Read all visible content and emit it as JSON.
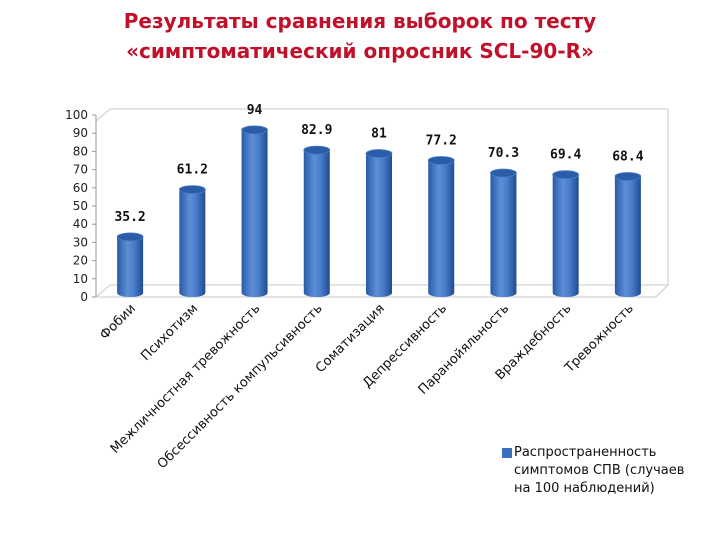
{
  "title_line1": "Результаты сравнения выборок по тесту",
  "title_line2": "«симптоматический опросник SCL-90-R»",
  "colors": {
    "title": "#c0102a",
    "bar": "#3b6fc0"
  },
  "chart_data": {
    "type": "bar",
    "categories": [
      "Фобии",
      "Психотизм",
      "Межличностная тревожность",
      "Обсессивность компульсивность",
      "Соматизация",
      "Депрессивность",
      "Паранойяльность",
      "Враждебность",
      "Тревожность"
    ],
    "series": [
      {
        "name": "Распространенность симптомов СПВ (случаев на 100 наблюдений)",
        "values": [
          35.2,
          61.2,
          94,
          82.9,
          81,
          77.2,
          70.3,
          69.4,
          68.4
        ],
        "labels": [
          "35.2",
          "61.2",
          "94",
          "82.9",
          "81",
          "77.2",
          "70.3",
          "69.4",
          "68.4"
        ]
      }
    ],
    "ylim": [
      0,
      100
    ],
    "yticks": [
      0,
      10,
      20,
      30,
      40,
      50,
      60,
      70,
      80,
      90,
      100
    ],
    "grid": false,
    "legend_position": "bottom-right"
  }
}
